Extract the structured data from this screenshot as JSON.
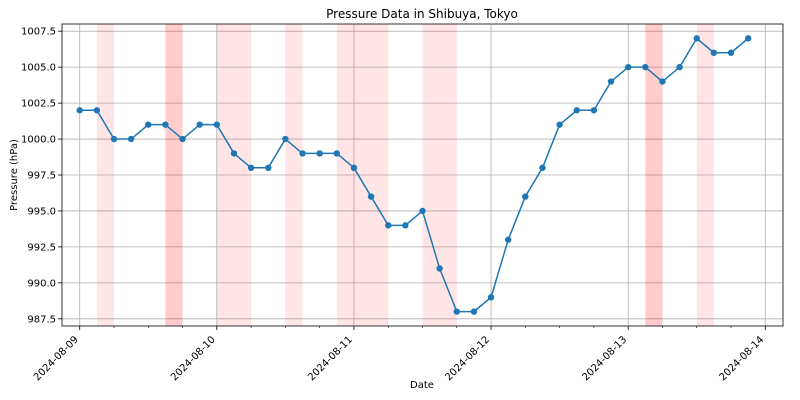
{
  "chart_data": {
    "type": "line",
    "title": "Pressure Data in Shibuya, Tokyo",
    "xlabel": "Date",
    "ylabel": "Pressure (hPa)",
    "xlim": [
      "2024-08-08T20:54",
      "2024-08-14T03:06"
    ],
    "ylim": [
      987.0,
      1008.0
    ],
    "grid": true,
    "x_ticks": [
      "2024-08-09",
      "2024-08-10",
      "2024-08-11",
      "2024-08-12",
      "2024-08-13",
      "2024-08-14"
    ],
    "y_ticks": [
      "987.5",
      "990.0",
      "992.5",
      "995.0",
      "997.5",
      "1000.0",
      "1002.5",
      "1005.0",
      "1007.5"
    ],
    "series": [
      {
        "color": "#1f77b4",
        "marker": "circle",
        "x": [
          "2024-08-09T00:00",
          "2024-08-09T03:00",
          "2024-08-09T06:00",
          "2024-08-09T09:00",
          "2024-08-09T12:00",
          "2024-08-09T15:00",
          "2024-08-09T18:00",
          "2024-08-09T21:00",
          "2024-08-10T00:00",
          "2024-08-10T03:00",
          "2024-08-10T06:00",
          "2024-08-10T09:00",
          "2024-08-10T12:00",
          "2024-08-10T15:00",
          "2024-08-10T18:00",
          "2024-08-10T21:00",
          "2024-08-11T00:00",
          "2024-08-11T03:00",
          "2024-08-11T06:00",
          "2024-08-11T09:00",
          "2024-08-11T12:00",
          "2024-08-11T15:00",
          "2024-08-11T18:00",
          "2024-08-11T21:00",
          "2024-08-12T00:00",
          "2024-08-12T03:00",
          "2024-08-12T06:00",
          "2024-08-12T09:00",
          "2024-08-12T12:00",
          "2024-08-12T15:00",
          "2024-08-12T18:00",
          "2024-08-12T21:00",
          "2024-08-13T00:00",
          "2024-08-13T03:00",
          "2024-08-13T06:00",
          "2024-08-13T09:00",
          "2024-08-13T12:00",
          "2024-08-13T15:00",
          "2024-08-13T18:00",
          "2024-08-13T21:00"
        ],
        "y": [
          1002,
          1002,
          1000,
          1000,
          1001,
          1001,
          1000,
          1001,
          1001,
          999,
          998,
          998,
          1000,
          999,
          999,
          999,
          998,
          996,
          994,
          994,
          995,
          991,
          988,
          988,
          989,
          993,
          996,
          998,
          1001,
          1002,
          1002,
          1004,
          1005,
          1005,
          1004,
          1005,
          1007,
          1006,
          1006,
          1007
        ]
      }
    ],
    "shaded_regions": [
      {
        "start": "2024-08-09T03:00",
        "end": "2024-08-09T06:00",
        "color": "#ff0000",
        "opacity": 0.1
      },
      {
        "start": "2024-08-09T15:00",
        "end": "2024-08-09T18:00",
        "color": "#ff0000",
        "opacity": 0.2
      },
      {
        "start": "2024-08-10T00:00",
        "end": "2024-08-10T06:00",
        "color": "#ff0000",
        "opacity": 0.1
      },
      {
        "start": "2024-08-10T12:00",
        "end": "2024-08-10T15:00",
        "color": "#ff0000",
        "opacity": 0.1
      },
      {
        "start": "2024-08-10T21:00",
        "end": "2024-08-11T06:00",
        "color": "#ff0000",
        "opacity": 0.1
      },
      {
        "start": "2024-08-11T12:00",
        "end": "2024-08-11T18:00",
        "color": "#ff0000",
        "opacity": 0.1
      },
      {
        "start": "2024-08-13T03:00",
        "end": "2024-08-13T06:00",
        "color": "#ff0000",
        "opacity": 0.2
      },
      {
        "start": "2024-08-13T12:00",
        "end": "2024-08-13T15:00",
        "color": "#ff0000",
        "opacity": 0.1
      }
    ]
  }
}
